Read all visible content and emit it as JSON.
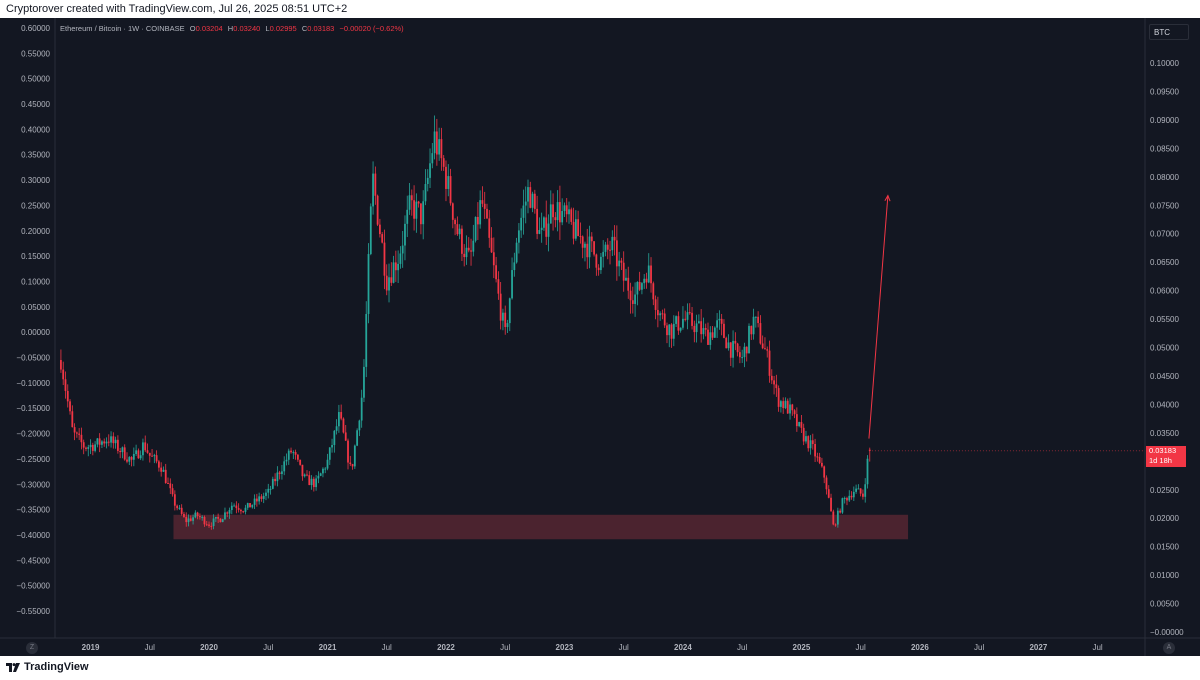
{
  "header": {
    "caption": "Cryptorover created with TradingView.com, Jul 26, 2025 08:51 UTC+2"
  },
  "legend": {
    "symbol": "Ethereum / Bitcoin · 1W · COINBASE",
    "open_key": "O",
    "open": "0.03204",
    "high_key": "H",
    "high": "0.03240",
    "low_key": "L",
    "low": "0.02995",
    "close_key": "C",
    "close": "0.03183",
    "change": "−0.00020 (−0.62%)"
  },
  "currency_button": "BTC",
  "last_price_tag": {
    "price": "0.03183",
    "countdown": "1d 18h"
  },
  "footer": {
    "brand": "TradingView",
    "timezone_button": "Z",
    "auto_button": "A"
  },
  "colors": {
    "background": "#131722",
    "up": "#26a69a",
    "down": "#f23645",
    "grid": "#1e222d",
    "axis_text": "#b2b5be",
    "support_zone": "#7a2d3b",
    "arrow": "#f23645"
  },
  "chart_data": {
    "type": "candlestick",
    "title": "Ethereum / Bitcoin · 1W · COINBASE",
    "left_axis": {
      "ticks": [
        "0.60000",
        "0.55000",
        "0.50000",
        "0.45000",
        "0.40000",
        "0.35000",
        "0.30000",
        "0.25000",
        "0.20000",
        "0.15000",
        "0.10000",
        "0.05000",
        "0.00000",
        "−0.05000",
        "−0.10000",
        "−0.15000",
        "−0.20000",
        "−0.25000",
        "−0.30000",
        "−0.35000",
        "−0.40000",
        "−0.45000",
        "−0.50000",
        "−0.55000"
      ],
      "ylim": [
        -0.55,
        0.6
      ]
    },
    "right_axis": {
      "label": "BTC",
      "ticks": [
        "0.10000",
        "0.09500",
        "0.09000",
        "0.08500",
        "0.08000",
        "0.07500",
        "0.07000",
        "0.06500",
        "0.06000",
        "0.05500",
        "0.05000",
        "0.04500",
        "0.04000",
        "0.03500",
        "0.03000",
        "0.02500",
        "0.02000",
        "0.01500",
        "0.01000",
        "0.00500",
        "−0.00000"
      ],
      "ylim": [
        0.0,
        0.1
      ]
    },
    "x_axis": {
      "ticks": [
        "2019",
        "Jul",
        "2020",
        "Jul",
        "2021",
        "Jul",
        "2022",
        "Jul",
        "2023",
        "Jul",
        "2024",
        "Jul",
        "2025",
        "Jul",
        "2026",
        "Jul",
        "2027",
        "Jul"
      ],
      "bold": [
        true,
        false,
        true,
        false,
        true,
        false,
        true,
        false,
        true,
        false,
        true,
        false,
        true,
        false,
        true,
        false,
        true,
        false
      ],
      "year_range": [
        2018.7,
        2027.9
      ]
    },
    "grid": false,
    "price_path": [
      [
        2018.75,
        0.0478
      ],
      [
        2018.85,
        0.035
      ],
      [
        2018.95,
        0.0325
      ],
      [
        2019.05,
        0.033
      ],
      [
        2019.15,
        0.034
      ],
      [
        2019.25,
        0.032
      ],
      [
        2019.35,
        0.03
      ],
      [
        2019.45,
        0.033
      ],
      [
        2019.5,
        0.031
      ],
      [
        2019.6,
        0.029
      ],
      [
        2019.7,
        0.023
      ],
      [
        2019.8,
        0.0195
      ],
      [
        2019.9,
        0.0205
      ],
      [
        2020.0,
        0.019
      ],
      [
        2020.1,
        0.02
      ],
      [
        2020.2,
        0.0225
      ],
      [
        2020.3,
        0.0215
      ],
      [
        2020.4,
        0.023
      ],
      [
        2020.5,
        0.0245
      ],
      [
        2020.6,
        0.0285
      ],
      [
        2020.7,
        0.032
      ],
      [
        2020.8,
        0.027
      ],
      [
        2020.9,
        0.026
      ],
      [
        2021.0,
        0.03
      ],
      [
        2021.1,
        0.038
      ],
      [
        2021.2,
        0.028
      ],
      [
        2021.3,
        0.043
      ],
      [
        2021.38,
        0.08
      ],
      [
        2021.5,
        0.062
      ],
      [
        2021.6,
        0.066
      ],
      [
        2021.7,
        0.075
      ],
      [
        2021.8,
        0.073
      ],
      [
        2021.9,
        0.087
      ],
      [
        2022.0,
        0.08
      ],
      [
        2022.1,
        0.07
      ],
      [
        2022.2,
        0.065
      ],
      [
        2022.3,
        0.076
      ],
      [
        2022.4,
        0.064
      ],
      [
        2022.5,
        0.052
      ],
      [
        2022.6,
        0.07
      ],
      [
        2022.7,
        0.078
      ],
      [
        2022.8,
        0.069
      ],
      [
        2022.9,
        0.075
      ],
      [
        2023.0,
        0.073
      ],
      [
        2023.1,
        0.07
      ],
      [
        2023.2,
        0.068
      ],
      [
        2023.3,
        0.065
      ],
      [
        2023.4,
        0.068
      ],
      [
        2023.5,
        0.062
      ],
      [
        2023.6,
        0.059
      ],
      [
        2023.7,
        0.064
      ],
      [
        2023.8,
        0.056
      ],
      [
        2023.9,
        0.053
      ],
      [
        2024.0,
        0.055
      ],
      [
        2024.1,
        0.054
      ],
      [
        2024.2,
        0.052
      ],
      [
        2024.3,
        0.054
      ],
      [
        2024.4,
        0.05
      ],
      [
        2024.5,
        0.048
      ],
      [
        2024.6,
        0.055
      ],
      [
        2024.7,
        0.049
      ],
      [
        2024.8,
        0.041
      ],
      [
        2024.9,
        0.039
      ],
      [
        2025.0,
        0.035
      ],
      [
        2025.1,
        0.032
      ],
      [
        2025.2,
        0.027
      ],
      [
        2025.27,
        0.0185
      ],
      [
        2025.35,
        0.023
      ],
      [
        2025.45,
        0.025
      ],
      [
        2025.52,
        0.024
      ],
      [
        2025.57,
        0.0318
      ]
    ],
    "last_candle": {
      "date": "Jul 26, 2025",
      "open": 0.03204,
      "high": 0.0324,
      "low": 0.02995,
      "close": 0.03183
    },
    "annotations": {
      "support_zone": {
        "from": 2019.7,
        "to": 2025.9,
        "price_low": 0.0163,
        "price_high": 0.0206
      },
      "arrow": {
        "from_year": 2025.57,
        "from_price": 0.034,
        "to_year": 2025.73,
        "to_price": 0.0767
      }
    }
  }
}
